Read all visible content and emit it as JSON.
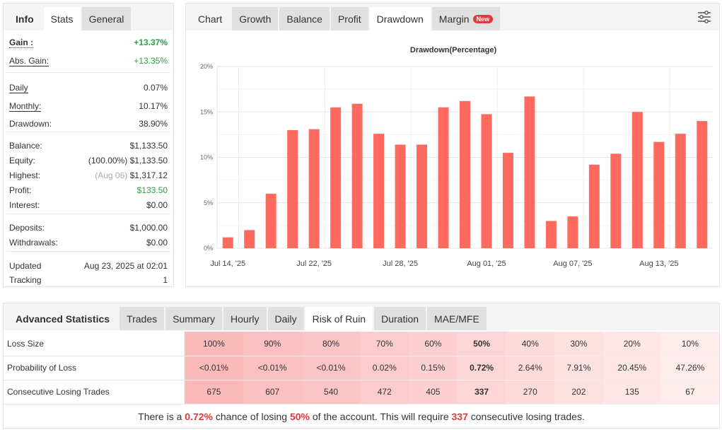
{
  "left": {
    "tabs": [
      "Info",
      "Stats",
      "General"
    ],
    "active_tab": "Stats",
    "rows": [
      {
        "label": "Gain :",
        "value": "+13.37%"
      },
      {
        "label": "Abs. Gain:",
        "value": "+13.35%"
      },
      {
        "label": "Daily",
        "value": "0.07%"
      },
      {
        "label": "Monthly:",
        "value": "10.17%"
      },
      {
        "label": "Drawdown:",
        "value": "38.90%"
      },
      {
        "label": "Balance:",
        "value": "$1,133.50"
      },
      {
        "label": "Equity:",
        "note": "(100.00%)",
        "value": "$1,133.50"
      },
      {
        "label": "Highest:",
        "note": "(Aug 06)",
        "value": "$1,317.12"
      },
      {
        "label": "Profit:",
        "value": "$133.50"
      },
      {
        "label": "Interest:",
        "value": "$0.00"
      },
      {
        "label": "Deposits:",
        "value": "$1,000.00"
      },
      {
        "label": "Withdrawals:",
        "value": "$0.00"
      },
      {
        "label": "Updated",
        "value": "Aug 23, 2025 at 02:01"
      },
      {
        "label": "Tracking",
        "value": "1"
      }
    ]
  },
  "chart_panel": {
    "tabs": [
      "Chart",
      "Growth",
      "Balance",
      "Profit",
      "Drawdown",
      "Margin"
    ],
    "active_tab": "Drawdown",
    "new_badge": "New",
    "settings_icon": "sliders-icon"
  },
  "chart_data": {
    "type": "bar",
    "title": "Drawdown(Percentage)",
    "ylim": [
      0,
      20
    ],
    "yticks": [
      "0%",
      "5%",
      "10%",
      "15%",
      "20%"
    ],
    "ytick_values": [
      0,
      5,
      10,
      15,
      20
    ],
    "grid": true,
    "bar_color": "#ff6a5e",
    "values": [
      1.2,
      2.0,
      6.0,
      13.0,
      13.1,
      15.5,
      15.9,
      12.6,
      11.4,
      11.4,
      15.5,
      16.2,
      14.75,
      10.5,
      16.7,
      3.0,
      3.5,
      9.2,
      10.4,
      15.0,
      11.7,
      12.6,
      14.0
    ],
    "xticks": [
      {
        "index": 0,
        "label": "Jul 14, '25"
      },
      {
        "index": 4,
        "label": "Jul 22, '25"
      },
      {
        "index": 8,
        "label": "Jul 28, '25"
      },
      {
        "index": 12,
        "label": "Aug 01, '25"
      },
      {
        "index": 16,
        "label": "Aug 07, '25"
      },
      {
        "index": 20,
        "label": "Aug 13, '25"
      }
    ]
  },
  "advanced": {
    "tabs": [
      "Advanced Statistics",
      "Trades",
      "Summary",
      "Hourly",
      "Daily",
      "Risk of Ruin",
      "Duration",
      "MAE/MFE"
    ],
    "active_tab": "Risk of Ruin",
    "rows": [
      {
        "label": "Loss Size",
        "cells": [
          "100%",
          "90%",
          "80%",
          "70%",
          "60%",
          "50%",
          "40%",
          "30%",
          "20%",
          "10%"
        ]
      },
      {
        "label": "Probability of Loss",
        "cells": [
          "<0.01%",
          "<0.01%",
          "<0.01%",
          "0.02%",
          "0.15%",
          "0.72%",
          "2.64%",
          "7.91%",
          "20.45%",
          "47.26%"
        ]
      },
      {
        "label": "Consecutive Losing Trades",
        "cells": [
          "675",
          "607",
          "540",
          "472",
          "405",
          "337",
          "270",
          "202",
          "135",
          "67"
        ]
      }
    ],
    "highlight_column": 5,
    "sentence": {
      "p1": "There is a ",
      "prob": "0.72%",
      "p2": " chance of losing ",
      "loss": "50%",
      "p3": " of the account. This will require ",
      "trades": "337",
      "p4": " consecutive losing trades."
    }
  }
}
